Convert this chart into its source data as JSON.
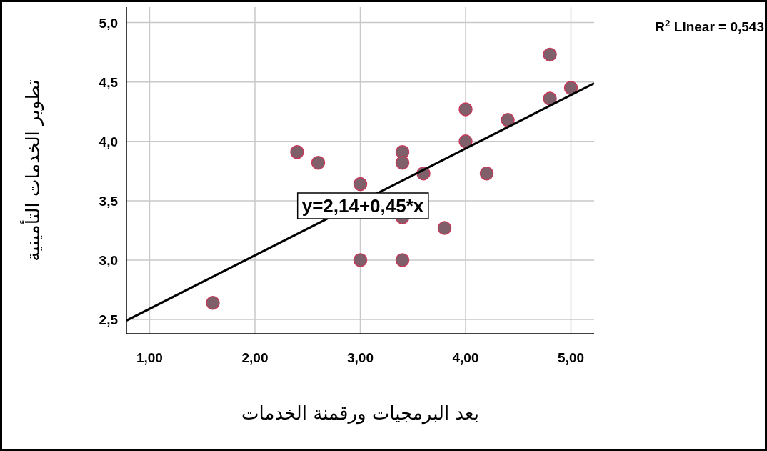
{
  "chart_data": {
    "type": "scatter",
    "xlabel": "بعد البرمجيات ورقمنة الخدمات",
    "ylabel": "تطوير الخدمات التأمينية",
    "annotations": [
      "y=2,14+0,45*x",
      "R$^{2}$ Linear = 0,543"
    ],
    "xlim": [
      0.78,
      5.22
    ],
    "ylim": [
      2.38,
      5.13
    ],
    "xticks": [
      {
        "value": 1,
        "label": "1,00"
      },
      {
        "value": 2,
        "label": "2,00"
      },
      {
        "value": 3,
        "label": "3,00"
      },
      {
        "value": 4,
        "label": "4,00"
      },
      {
        "value": 5,
        "label": "5,00"
      }
    ],
    "yticks": [
      {
        "value": 2.5,
        "label": "2,5"
      },
      {
        "value": 3,
        "label": "3,0"
      },
      {
        "value": 3.5,
        "label": "3,5"
      },
      {
        "value": 4,
        "label": "4,0"
      },
      {
        "value": 4.5,
        "label": "4,5"
      },
      {
        "value": 5,
        "label": "5,0"
      }
    ],
    "grid": true,
    "series": [
      {
        "marker": "circle",
        "color": "#7f5f6a",
        "x": [
          1.6,
          2.4,
          2.6,
          3.0,
          3.0,
          3.4,
          3.4,
          3.4,
          3.4,
          3.6,
          3.8,
          4.0,
          4.0,
          4.2,
          4.4,
          4.8,
          4.8,
          5.0
        ],
        "values": [
          2.64,
          3.91,
          3.82,
          3.64,
          3.0,
          3.91,
          3.82,
          3.36,
          3.0,
          3.73,
          3.27,
          4.27,
          4.0,
          3.73,
          4.18,
          4.73,
          4.36,
          4.45
        ]
      },
      {
        "type": "line",
        "color": "#000000",
        "x": [
          0.78,
          5.22
        ],
        "values": [
          2.491,
          4.489
        ]
      }
    ]
  }
}
